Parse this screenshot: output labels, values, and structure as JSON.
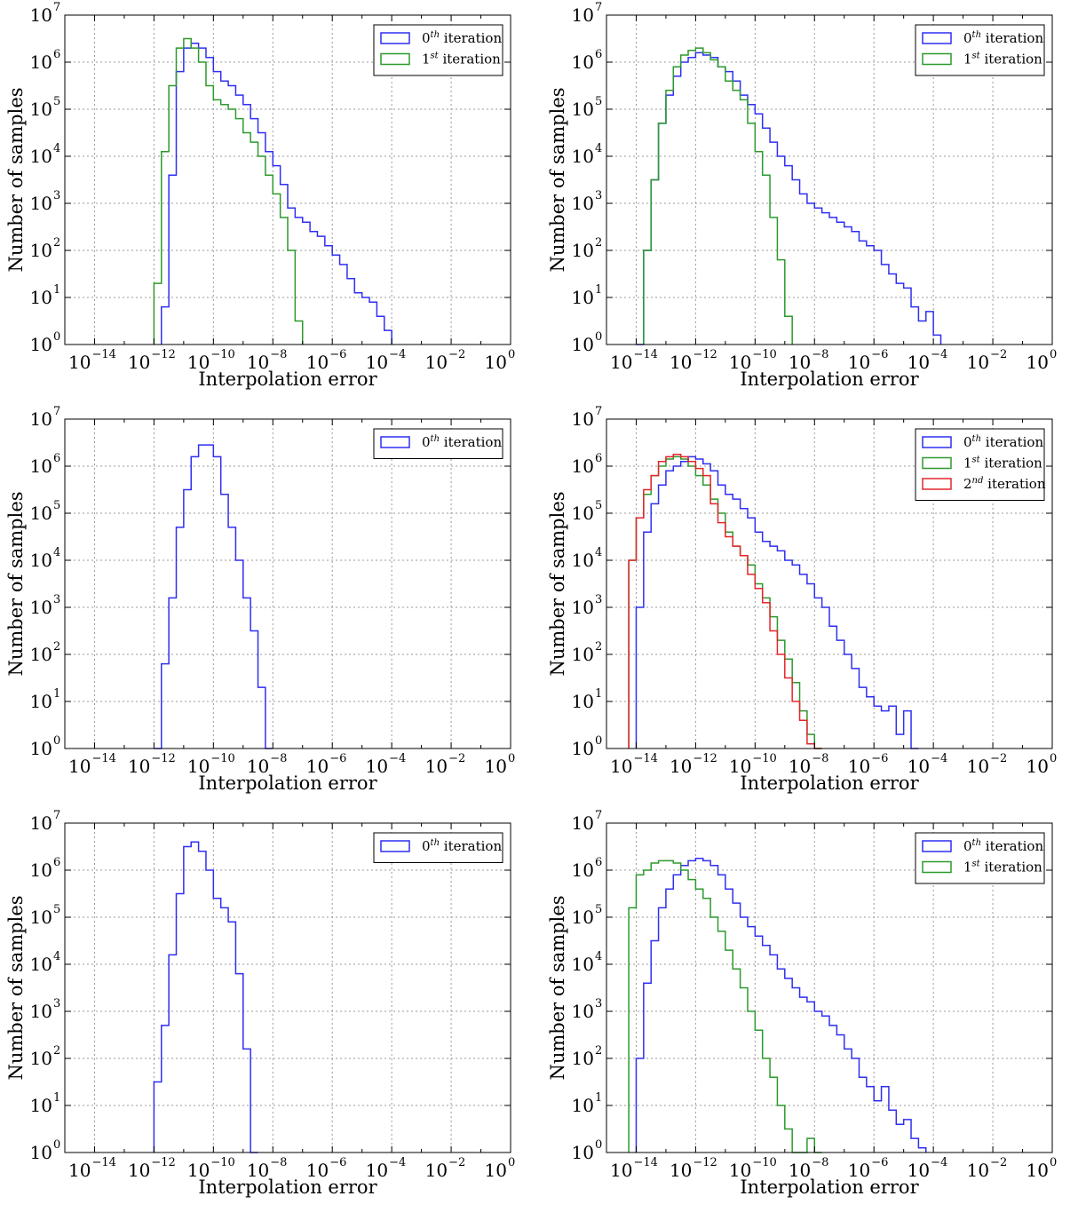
{
  "figure": {
    "colors": {
      "blue": "#2f2ff2",
      "green": "#2c9a2c",
      "red": "#e3262b",
      "grid": "#9a9a9a"
    }
  },
  "chart_data": [
    {
      "type": "histogram",
      "xlabel": "Interpolation error",
      "ylabel": "Number of samples",
      "x_scale": "log",
      "y_scale": "log",
      "xlim_exp": [
        -15,
        0
      ],
      "ylim_exp": [
        0,
        7
      ],
      "x_ticks": [
        {
          "base": "10",
          "exp": "−14"
        },
        {
          "base": "10",
          "exp": "−12"
        },
        {
          "base": "10",
          "exp": "−10"
        },
        {
          "base": "10",
          "exp": "−8"
        },
        {
          "base": "10",
          "exp": "−6"
        },
        {
          "base": "10",
          "exp": "−4"
        },
        {
          "base": "10",
          "exp": "−2"
        },
        {
          "base": "10",
          "exp": "0"
        }
      ],
      "y_ticks": [
        {
          "base": "10",
          "exp": "0"
        },
        {
          "base": "10",
          "exp": "1"
        },
        {
          "base": "10",
          "exp": "2"
        },
        {
          "base": "10",
          "exp": "3"
        },
        {
          "base": "10",
          "exp": "4"
        },
        {
          "base": "10",
          "exp": "5"
        },
        {
          "base": "10",
          "exp": "6"
        },
        {
          "base": "10",
          "exp": "7"
        }
      ],
      "grid": true,
      "legend": "top-right",
      "bin_width_exp": 0.25,
      "series": [
        {
          "name": "0th iteration",
          "label_base": "0",
          "label_sup": "th",
          "label_rest": " iteration",
          "color": "#2f2ff2",
          "start_exp": -11.75,
          "log10_counts": [
            0.8,
            3.6,
            5.8,
            6.3,
            6.4,
            6.3,
            6.1,
            5.8,
            5.6,
            5.5,
            5.3,
            5.1,
            4.8,
            4.5,
            4.1,
            3.8,
            3.4,
            2.9,
            2.7,
            2.6,
            2.4,
            2.3,
            2.1,
            1.9,
            1.7,
            1.4,
            1.1,
            1.0,
            0.9,
            0.6,
            0.3
          ]
        },
        {
          "name": "1st iteration",
          "label_base": "1",
          "label_sup": "st",
          "label_rest": " iteration",
          "color": "#2c9a2c",
          "start_exp": -12.0,
          "log10_counts": [
            1.3,
            4.1,
            5.5,
            6.3,
            6.5,
            6.3,
            6.0,
            5.5,
            5.2,
            5.1,
            5.0,
            4.8,
            4.5,
            4.3,
            4.0,
            3.6,
            3.2,
            2.7,
            2.0,
            0.5
          ]
        }
      ]
    },
    {
      "type": "histogram",
      "xlabel": "Interpolation error",
      "ylabel": "Number of samples",
      "x_scale": "log",
      "y_scale": "log",
      "xlim_exp": [
        -15,
        0
      ],
      "ylim_exp": [
        0,
        7
      ],
      "x_ticks": [
        {
          "base": "10",
          "exp": "−14"
        },
        {
          "base": "10",
          "exp": "−12"
        },
        {
          "base": "10",
          "exp": "−10"
        },
        {
          "base": "10",
          "exp": "−8"
        },
        {
          "base": "10",
          "exp": "−6"
        },
        {
          "base": "10",
          "exp": "−4"
        },
        {
          "base": "10",
          "exp": "−2"
        },
        {
          "base": "10",
          "exp": "0"
        }
      ],
      "y_ticks": [
        {
          "base": "10",
          "exp": "0"
        },
        {
          "base": "10",
          "exp": "1"
        },
        {
          "base": "10",
          "exp": "2"
        },
        {
          "base": "10",
          "exp": "3"
        },
        {
          "base": "10",
          "exp": "4"
        },
        {
          "base": "10",
          "exp": "5"
        },
        {
          "base": "10",
          "exp": "6"
        },
        {
          "base": "10",
          "exp": "7"
        }
      ],
      "grid": true,
      "legend": "top-right",
      "bin_width_exp": 0.25,
      "series": [
        {
          "name": "0th iteration",
          "label_base": "0",
          "label_sup": "th",
          "label_rest": " iteration",
          "color": "#2f2ff2",
          "start_exp": -14.0,
          "log10_counts": [
            0.0,
            2.0,
            3.5,
            4.7,
            5.3,
            5.7,
            6.0,
            6.1,
            6.2,
            6.15,
            6.1,
            5.9,
            5.8,
            5.6,
            5.3,
            5.1,
            4.9,
            4.6,
            4.3,
            4.0,
            3.8,
            3.5,
            3.2,
            3.0,
            2.9,
            2.8,
            2.7,
            2.6,
            2.5,
            2.4,
            2.2,
            2.1,
            2.0,
            1.7,
            1.5,
            1.3,
            1.2,
            0.8,
            0.5,
            0.7,
            0.2
          ]
        },
        {
          "name": "1st iteration",
          "label_base": "1",
          "label_sup": "st",
          "label_rest": " iteration",
          "color": "#2c9a2c",
          "start_exp": -13.75,
          "log10_counts": [
            2.0,
            3.5,
            4.7,
            5.4,
            5.9,
            6.15,
            6.25,
            6.3,
            6.2,
            6.05,
            5.9,
            5.6,
            5.4,
            5.2,
            4.7,
            4.1,
            3.6,
            2.7,
            1.8,
            0.6
          ]
        }
      ]
    },
    {
      "type": "histogram",
      "xlabel": "Interpolation error",
      "ylabel": "Number of samples",
      "x_scale": "log",
      "y_scale": "log",
      "xlim_exp": [
        -15,
        0
      ],
      "ylim_exp": [
        0,
        7
      ],
      "x_ticks": [
        {
          "base": "10",
          "exp": "−14"
        },
        {
          "base": "10",
          "exp": "−12"
        },
        {
          "base": "10",
          "exp": "−10"
        },
        {
          "base": "10",
          "exp": "−8"
        },
        {
          "base": "10",
          "exp": "−6"
        },
        {
          "base": "10",
          "exp": "−4"
        },
        {
          "base": "10",
          "exp": "−2"
        },
        {
          "base": "10",
          "exp": "0"
        }
      ],
      "y_ticks": [
        {
          "base": "10",
          "exp": "0"
        },
        {
          "base": "10",
          "exp": "1"
        },
        {
          "base": "10",
          "exp": "2"
        },
        {
          "base": "10",
          "exp": "3"
        },
        {
          "base": "10",
          "exp": "4"
        },
        {
          "base": "10",
          "exp": "5"
        },
        {
          "base": "10",
          "exp": "6"
        },
        {
          "base": "10",
          "exp": "7"
        }
      ],
      "grid": true,
      "legend": "top-right",
      "bin_width_exp": 0.25,
      "series": [
        {
          "name": "0th iteration",
          "label_base": "0",
          "label_sup": "th",
          "label_rest": " iteration",
          "color": "#2f2ff2",
          "start_exp": -12.0,
          "log10_counts": [
            0.0,
            1.8,
            3.2,
            4.7,
            5.5,
            6.2,
            6.45,
            6.45,
            6.2,
            5.4,
            4.7,
            4.0,
            3.2,
            2.5,
            1.3,
            0.0
          ]
        }
      ]
    },
    {
      "type": "histogram",
      "xlabel": "Interpolation error",
      "ylabel": "Number of samples",
      "x_scale": "log",
      "y_scale": "log",
      "xlim_exp": [
        -15,
        0
      ],
      "ylim_exp": [
        0,
        7
      ],
      "x_ticks": [
        {
          "base": "10",
          "exp": "−14"
        },
        {
          "base": "10",
          "exp": "−12"
        },
        {
          "base": "10",
          "exp": "−10"
        },
        {
          "base": "10",
          "exp": "−8"
        },
        {
          "base": "10",
          "exp": "−6"
        },
        {
          "base": "10",
          "exp": "−4"
        },
        {
          "base": "10",
          "exp": "−2"
        },
        {
          "base": "10",
          "exp": "0"
        }
      ],
      "y_ticks": [
        {
          "base": "10",
          "exp": "0"
        },
        {
          "base": "10",
          "exp": "1"
        },
        {
          "base": "10",
          "exp": "2"
        },
        {
          "base": "10",
          "exp": "3"
        },
        {
          "base": "10",
          "exp": "4"
        },
        {
          "base": "10",
          "exp": "5"
        },
        {
          "base": "10",
          "exp": "6"
        },
        {
          "base": "10",
          "exp": "7"
        }
      ],
      "grid": true,
      "legend": "top-right",
      "bin_width_exp": 0.25,
      "series": [
        {
          "name": "0th iteration",
          "label_base": "0",
          "label_sup": "th",
          "label_rest": " iteration",
          "color": "#2f2ff2",
          "start_exp": -14.0,
          "log10_counts": [
            3.0,
            4.6,
            5.2,
            5.6,
            5.9,
            6.0,
            6.1,
            6.2,
            6.15,
            6.05,
            5.9,
            5.6,
            5.4,
            5.3,
            5.1,
            4.9,
            4.6,
            4.4,
            4.3,
            4.2,
            4.0,
            3.9,
            3.7,
            3.5,
            3.2,
            3.0,
            2.6,
            2.3,
            2.0,
            1.7,
            1.3,
            1.1,
            0.9,
            0.8,
            0.9,
            0.3,
            0.8,
            0.0
          ]
        },
        {
          "name": "1st iteration",
          "label_base": "1",
          "label_sup": "st",
          "label_rest": " iteration",
          "color": "#2c9a2c",
          "start_exp": -14.25,
          "log10_counts": [
            4.0,
            4.9,
            5.4,
            5.8,
            6.0,
            6.15,
            6.2,
            6.15,
            6.0,
            5.8,
            5.6,
            5.3,
            5.0,
            4.6,
            4.3,
            4.1,
            3.9,
            3.5,
            3.2,
            2.8,
            2.3,
            1.9,
            1.4,
            0.8,
            0.3,
            0.0
          ]
        },
        {
          "name": "2nd iteration",
          "label_base": "2",
          "label_sup": "nd",
          "label_rest": " iteration",
          "color": "#e3262b",
          "start_exp": -14.25,
          "log10_counts": [
            4.0,
            4.9,
            5.5,
            5.8,
            6.1,
            6.2,
            6.25,
            6.2,
            6.1,
            5.95,
            5.8,
            5.2,
            4.8,
            4.5,
            4.3,
            4.1,
            3.7,
            3.4,
            3.1,
            2.5,
            2.0,
            1.5,
            1.0,
            0.6,
            0.1,
            0.0
          ]
        }
      ]
    },
    {
      "type": "histogram",
      "xlabel": "Interpolation error",
      "ylabel": "Number of samples",
      "x_scale": "log",
      "y_scale": "log",
      "xlim_exp": [
        -15,
        0
      ],
      "ylim_exp": [
        0,
        7
      ],
      "x_ticks": [
        {
          "base": "10",
          "exp": "−14"
        },
        {
          "base": "10",
          "exp": "−12"
        },
        {
          "base": "10",
          "exp": "−10"
        },
        {
          "base": "10",
          "exp": "−8"
        },
        {
          "base": "10",
          "exp": "−6"
        },
        {
          "base": "10",
          "exp": "−4"
        },
        {
          "base": "10",
          "exp": "−2"
        },
        {
          "base": "10",
          "exp": "0"
        }
      ],
      "y_ticks": [
        {
          "base": "10",
          "exp": "0"
        },
        {
          "base": "10",
          "exp": "1"
        },
        {
          "base": "10",
          "exp": "2"
        },
        {
          "base": "10",
          "exp": "3"
        },
        {
          "base": "10",
          "exp": "4"
        },
        {
          "base": "10",
          "exp": "5"
        },
        {
          "base": "10",
          "exp": "6"
        },
        {
          "base": "10",
          "exp": "7"
        }
      ],
      "grid": true,
      "legend": "top-right",
      "bin_width_exp": 0.25,
      "series": [
        {
          "name": "0th iteration",
          "label_base": "0",
          "label_sup": "th",
          "label_rest": " iteration",
          "color": "#2f2ff2",
          "start_exp": -12.0,
          "log10_counts": [
            1.5,
            2.7,
            4.2,
            5.5,
            6.5,
            6.6,
            6.4,
            6.0,
            5.4,
            5.2,
            4.9,
            3.8,
            2.2,
            0.0
          ]
        }
      ]
    },
    {
      "type": "histogram",
      "xlabel": "Interpolation error",
      "ylabel": "Number of samples",
      "x_scale": "log",
      "y_scale": "log",
      "xlim_exp": [
        -15,
        0
      ],
      "ylim_exp": [
        0,
        7
      ],
      "x_ticks": [
        {
          "base": "10",
          "exp": "−14"
        },
        {
          "base": "10",
          "exp": "−12"
        },
        {
          "base": "10",
          "exp": "−10"
        },
        {
          "base": "10",
          "exp": "−8"
        },
        {
          "base": "10",
          "exp": "−6"
        },
        {
          "base": "10",
          "exp": "−4"
        },
        {
          "base": "10",
          "exp": "−2"
        },
        {
          "base": "10",
          "exp": "0"
        }
      ],
      "y_ticks": [
        {
          "base": "10",
          "exp": "0"
        },
        {
          "base": "10",
          "exp": "1"
        },
        {
          "base": "10",
          "exp": "2"
        },
        {
          "base": "10",
          "exp": "3"
        },
        {
          "base": "10",
          "exp": "4"
        },
        {
          "base": "10",
          "exp": "5"
        },
        {
          "base": "10",
          "exp": "6"
        },
        {
          "base": "10",
          "exp": "7"
        }
      ],
      "grid": true,
      "legend": "top-right",
      "bin_width_exp": 0.25,
      "series": [
        {
          "name": "0th iteration",
          "label_base": "0",
          "label_sup": "th",
          "label_rest": " iteration",
          "color": "#2f2ff2",
          "start_exp": -14.0,
          "log10_counts": [
            2.0,
            3.6,
            4.5,
            5.2,
            5.6,
            5.9,
            6.1,
            6.2,
            6.25,
            6.2,
            6.1,
            5.9,
            5.6,
            5.3,
            5.0,
            4.8,
            4.6,
            4.4,
            4.2,
            3.9,
            3.7,
            3.5,
            3.3,
            3.2,
            3.0,
            2.9,
            2.7,
            2.5,
            2.2,
            2.0,
            1.6,
            1.4,
            1.1,
            1.4,
            0.9,
            0.6,
            0.7,
            0.3,
            0.1
          ]
        },
        {
          "name": "1st iteration",
          "label_base": "1",
          "label_sup": "st",
          "label_rest": " iteration",
          "color": "#2c9a2c",
          "start_exp": -14.25,
          "log10_counts": [
            5.2,
            5.9,
            6.0,
            6.15,
            6.2,
            6.2,
            6.15,
            6.0,
            5.8,
            5.6,
            5.4,
            5.0,
            4.7,
            4.3,
            3.9,
            3.5,
            3.0,
            2.6,
            2.0,
            1.6,
            1.0,
            0.5,
            0.0,
            0.0,
            0.3,
            0.0
          ]
        }
      ]
    }
  ]
}
